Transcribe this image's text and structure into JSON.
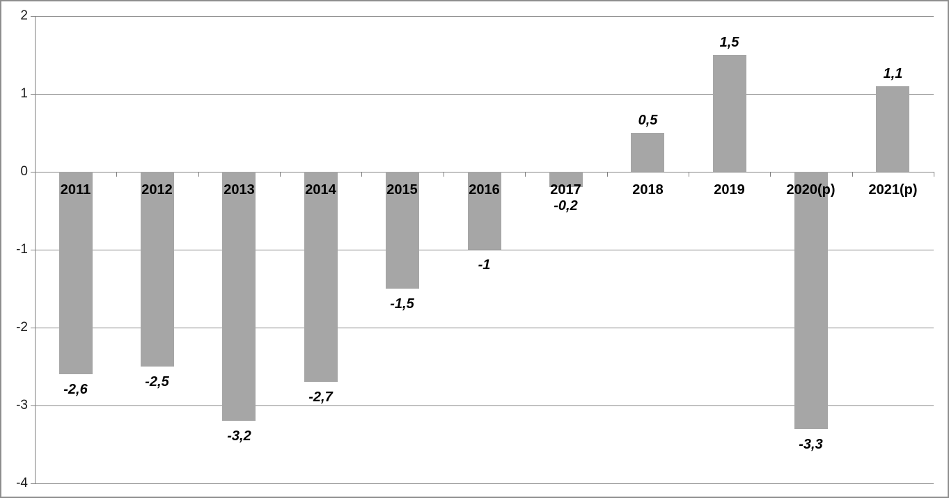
{
  "chart_data": {
    "type": "bar",
    "title": "",
    "xlabel": "",
    "ylabel": "",
    "categories": [
      "2011",
      "2012",
      "2013",
      "2014",
      "2015",
      "2016",
      "2017",
      "2018",
      "2019",
      "2020(p)",
      "2021(p)"
    ],
    "values": [
      -2.6,
      -2.5,
      -3.2,
      -2.7,
      -1.5,
      -1,
      -0.2,
      0.5,
      1.5,
      -3.3,
      1.1
    ],
    "value_labels": [
      "-2,6",
      "-2,5",
      "-3,2",
      "-2,7",
      "-1,5",
      "-1",
      "-0,2",
      "0,5",
      "1,5",
      "-3,3",
      "1,1"
    ],
    "y_tick_labels": [
      "2",
      "1",
      "0",
      "-1",
      "-2",
      "-3",
      "-4"
    ],
    "ylim": [
      -4,
      2
    ],
    "grid": true,
    "legend_position": "none",
    "colors": {
      "bar": "#a6a6a6",
      "gridline": "#878787",
      "axis": "#808080",
      "text": "#000000",
      "frame": "#8e8e8e",
      "background": "#ffffff"
    }
  }
}
